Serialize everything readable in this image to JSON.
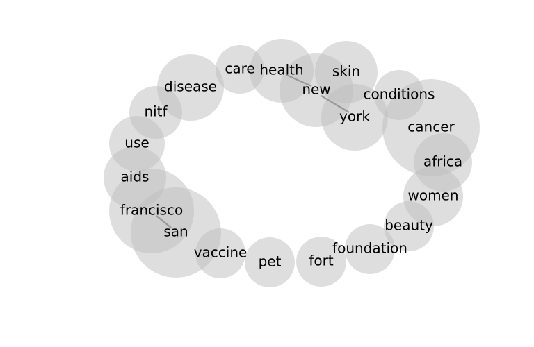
{
  "words": [
    {
      "id": "care",
      "label": "care"
    },
    {
      "id": "health",
      "label": "health"
    },
    {
      "id": "skin",
      "label": "skin"
    },
    {
      "id": "new",
      "label": "new"
    },
    {
      "id": "york",
      "label": "york"
    },
    {
      "id": "conditions",
      "label": "conditions"
    },
    {
      "id": "cancer",
      "label": "cancer"
    },
    {
      "id": "africa",
      "label": "africa"
    },
    {
      "id": "women",
      "label": "women"
    },
    {
      "id": "beauty",
      "label": "beauty"
    },
    {
      "id": "foundation",
      "label": "foundation"
    },
    {
      "id": "fort",
      "label": "fort"
    },
    {
      "id": "pet",
      "label": "pet"
    },
    {
      "id": "vaccine",
      "label": "vaccine"
    },
    {
      "id": "san",
      "label": "san"
    },
    {
      "id": "francisco",
      "label": "francisco"
    },
    {
      "id": "aids",
      "label": "aids"
    },
    {
      "id": "use",
      "label": "use"
    },
    {
      "id": "nitf",
      "label": "nitf"
    },
    {
      "id": "disease",
      "label": "disease"
    }
  ],
  "links": [
    {
      "source": "health",
      "target": "new"
    },
    {
      "source": "new",
      "target": "york"
    },
    {
      "source": "francisco",
      "target": "san"
    }
  ]
}
